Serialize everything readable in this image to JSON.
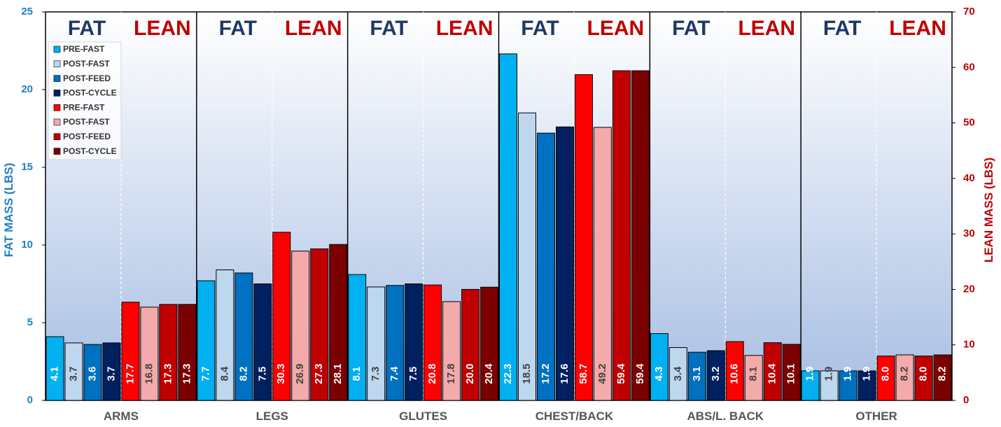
{
  "chart_data": {
    "type": "bar",
    "categories": [
      "ARMS",
      "LEGS",
      "GLUTES",
      "CHEST/BACK",
      "ABS/L. BACK",
      "OTHER"
    ],
    "group_labels": {
      "fat": "FAT",
      "lean": "LEAN"
    },
    "y_left": {
      "label": "FAT MASS (LBS)",
      "range": [
        0,
        25
      ],
      "ticks": [
        0,
        5,
        10,
        15,
        20,
        25
      ],
      "color": "#1f7fc4"
    },
    "y_right": {
      "label": "LEAN MASS (LBS)",
      "range": [
        0,
        70
      ],
      "ticks": [
        0,
        10,
        20,
        30,
        40,
        50,
        60,
        70
      ],
      "color": "#c00000"
    },
    "series": [
      {
        "name": "PRE-FAST",
        "group": "fat",
        "axis": "left",
        "color": "#00b0f0",
        "label_color": "#ffffff",
        "values": [
          4.1,
          7.7,
          8.1,
          22.3,
          4.3,
          1.9
        ]
      },
      {
        "name": "POST-FAST",
        "group": "fat",
        "axis": "left",
        "color": "#bdd7ee",
        "label_color": "#404040",
        "values": [
          3.7,
          8.4,
          7.3,
          18.5,
          3.4,
          1.9
        ]
      },
      {
        "name": "POST-FEED",
        "group": "fat",
        "axis": "left",
        "color": "#0070c0",
        "label_color": "#ffffff",
        "values": [
          3.6,
          8.2,
          7.4,
          17.2,
          3.1,
          1.9
        ]
      },
      {
        "name": "POST-CYCLE",
        "group": "fat",
        "axis": "left",
        "color": "#002060",
        "label_color": "#ffffff",
        "values": [
          3.7,
          7.5,
          7.5,
          17.6,
          3.2,
          1.9
        ]
      },
      {
        "name": "PRE-FAST",
        "group": "lean",
        "axis": "right",
        "color": "#ff0000",
        "label_color": "#ffffff",
        "values": [
          17.7,
          30.3,
          20.8,
          58.7,
          10.6,
          8.0
        ]
      },
      {
        "name": "POST-FAST",
        "group": "lean",
        "axis": "right",
        "color": "#f4aaaa",
        "label_color": "#404040",
        "values": [
          16.8,
          26.9,
          17.8,
          49.2,
          8.1,
          8.2
        ]
      },
      {
        "name": "POST-FEED",
        "group": "lean",
        "axis": "right",
        "color": "#c00000",
        "label_color": "#ffffff",
        "values": [
          17.3,
          27.3,
          20.0,
          59.4,
          10.4,
          8.0
        ]
      },
      {
        "name": "POST-CYCLE",
        "group": "lean",
        "axis": "right",
        "color": "#7b0000",
        "label_color": "#ffffff",
        "values": [
          17.3,
          28.1,
          20.4,
          59.4,
          10.1,
          8.2
        ]
      }
    ],
    "colors": {
      "fat_label": "#1f3864",
      "lean_label": "#c00000",
      "background_top": "#ffffff",
      "background_bottom": "#a6bde3"
    },
    "legend_position": "top-left",
    "grid": false
  }
}
